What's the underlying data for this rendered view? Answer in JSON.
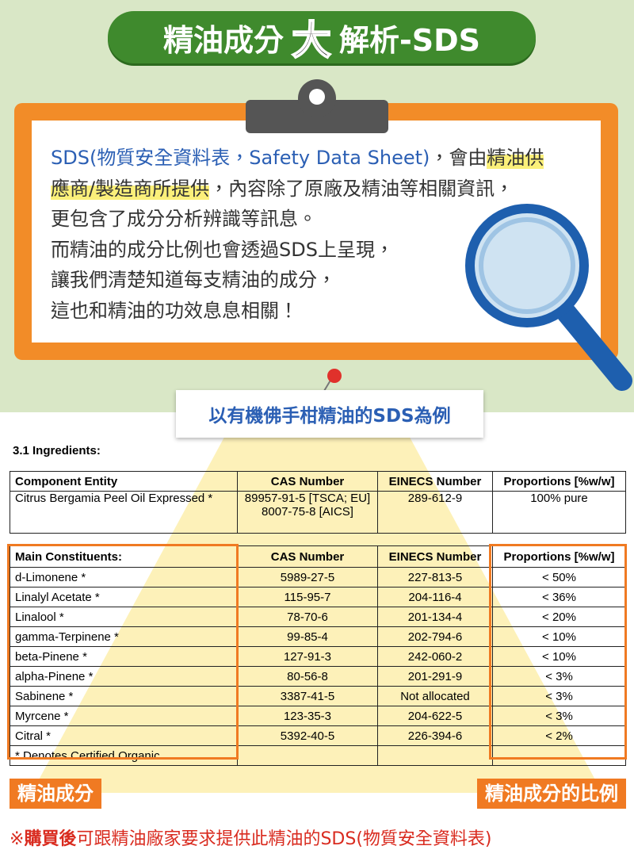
{
  "title": {
    "pre": "精油成分",
    "emph": "大",
    "post": "解析-SDS"
  },
  "intro": {
    "line0": [
      "SDS(物質安全資料表，Safety Data Sheet)",
      "，會由",
      "精油供"
    ],
    "line1": [
      "應商/製造商所提供",
      "，內容除了原廠及精油等相關資訊，"
    ],
    "lines": [
      "更包含了成分分析辨識等訊息。",
      "而精油的成分比例也會透過SDS上呈現，",
      "讓我們清楚知道每支精油的成分，",
      "這也和精油的功效息息相關！"
    ]
  },
  "example_label": "以有機佛手柑精油的SDS為例",
  "section_title": "3.1 Ingredients:",
  "table1": {
    "header": [
      "Component Entity",
      "CAS Number",
      "EINECS Number",
      "Proportions [%w/w]"
    ],
    "rows": [
      [
        "Citrus Bergamia Peel Oil Expressed *",
        [
          "89957-91-5 [TSCA; EU]",
          "8007-75-8 [AICS]"
        ],
        "289-612-9",
        "100% pure"
      ]
    ]
  },
  "table2": {
    "header": [
      "Main Constituents:",
      "CAS Number",
      "EINECS Number",
      "Proportions [%w/w]"
    ],
    "rows": [
      [
        "d-Limonene *",
        "5989-27-5",
        "227-813-5",
        "< 50%"
      ],
      [
        "Linalyl Acetate *",
        "115-95-7",
        "204-116-4",
        "< 36%"
      ],
      [
        "Linalool *",
        "78-70-6",
        "201-134-4",
        "< 20%"
      ],
      [
        "gamma-Terpinene *",
        "99-85-4",
        "202-794-6",
        "< 10%"
      ],
      [
        "beta-Pinene *",
        "127-91-3",
        "242-060-2",
        "< 10%"
      ],
      [
        "alpha-Pinene *",
        "80-56-8",
        "201-291-9",
        "< 3%"
      ],
      [
        "Sabinene *",
        "3387-41-5",
        "Not allocated",
        "< 3%"
      ],
      [
        "Myrcene *",
        "123-35-3",
        "204-622-5",
        "< 3%"
      ],
      [
        "Citral *",
        "5392-40-5",
        "226-394-6",
        "< 2%"
      ]
    ],
    "footnote": "* Denotes Certified Organic"
  },
  "label_left": "精油成分",
  "label_right": "精油成分的比例",
  "footer": {
    "mark": "※",
    "bold": "購買後",
    "text": "可跟精油廠家要求提供此精油的SDS(物質安全資料表)"
  }
}
